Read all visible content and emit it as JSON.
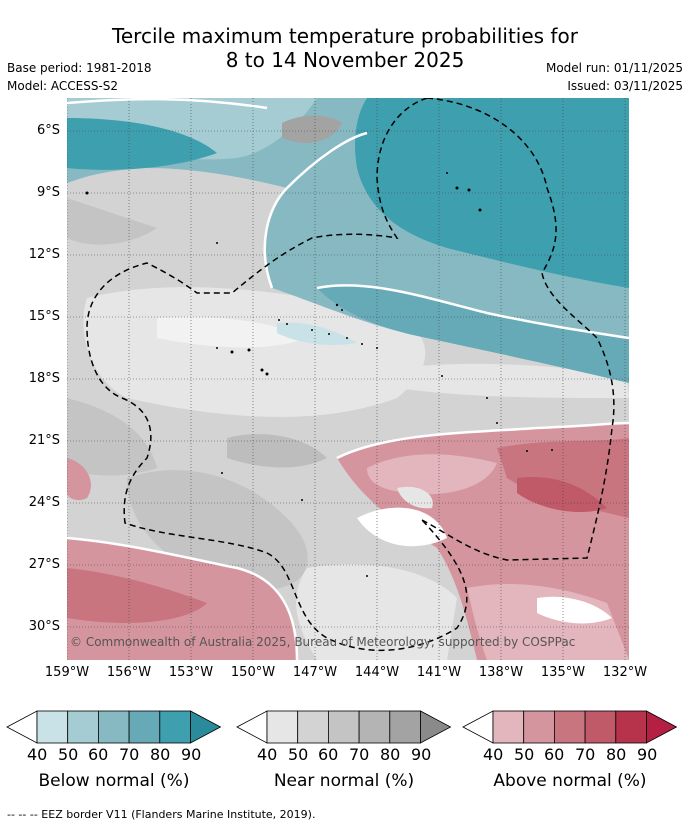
{
  "title_line1": "Tercile maximum temperature probabilities for",
  "title_line2": "8 to 14 November 2025",
  "base_period": "Base period: 1981-2018",
  "model": "Model: ACCESS-S2",
  "model_run": "Model run: 01/11/2025",
  "issued": "Issued: 03/11/2025",
  "copyright": "© Commonwealth of Australia 2025, Bureau of Meteorology, supported by COSPPac",
  "lat_labels": [
    "6°S",
    "9°S",
    "12°S",
    "15°S",
    "18°S",
    "21°S",
    "24°S",
    "27°S",
    "30°S"
  ],
  "lon_labels": [
    "159°W",
    "156°W",
    "153°W",
    "150°W",
    "147°W",
    "144°W",
    "141°W",
    "138°W",
    "135°W",
    "132°W"
  ],
  "colorbars": [
    {
      "title": "Below normal (%)",
      "ticks": [
        "40",
        "50",
        "60",
        "70",
        "80",
        "90"
      ],
      "colors": [
        "#ffffff",
        "#c9e2e7",
        "#a6ccd3",
        "#87b9c3",
        "#66aab7",
        "#3e9fae",
        "#2a8b9b"
      ]
    },
    {
      "title": "Near normal (%)",
      "ticks": [
        "40",
        "50",
        "60",
        "70",
        "80",
        "90"
      ],
      "colors": [
        "#ffffff",
        "#e6e6e6",
        "#d3d3d3",
        "#c4c4c4",
        "#b4b4b4",
        "#a3a3a3",
        "#8a8a8a"
      ]
    },
    {
      "title": "Above normal (%)",
      "ticks": [
        "40",
        "50",
        "60",
        "70",
        "80",
        "90"
      ],
      "colors": [
        "#ffffff",
        "#e2b6bc",
        "#d5959e",
        "#c97580",
        "#c05a68",
        "#b7334c",
        "#b51f43"
      ]
    }
  ],
  "footnote": "-- -- -- EEZ border V11 (Flanders Marine Institute, 2019)."
}
